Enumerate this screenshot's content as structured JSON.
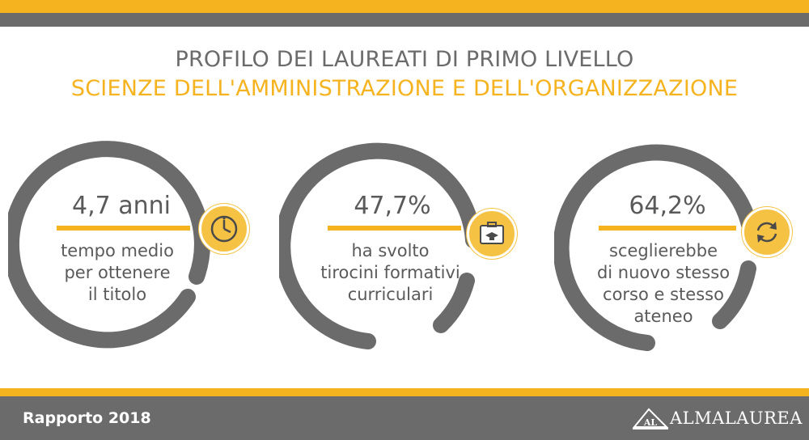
{
  "header": {
    "title_line1": "PROFILO DEI LAUREATI DI PRIMO LIVELLO",
    "title_line2": "SCIENZE DELL'AMMINISTRAZIONE E DELL'ORGANIZZAZIONE"
  },
  "stats": [
    {
      "value": "4,7 anni",
      "desc_lines": [
        "tempo medio",
        "per ottenere",
        "il titolo"
      ],
      "icon": "clock-icon"
    },
    {
      "value": "47,7%",
      "desc_lines": [
        "ha svolto",
        "tirocini formativi",
        "curriculari"
      ],
      "icon": "briefcase-graduation-icon"
    },
    {
      "value": "64,2%",
      "desc_lines": [
        "sceglierebbe",
        "di nuovo stesso",
        "corso e stesso",
        "ateneo"
      ],
      "icon": "refresh-cycle-icon"
    }
  ],
  "footer": {
    "report_label": "Rapporto 2018",
    "logo_text": "ALMALAUREA",
    "logo_mark": "AL"
  },
  "colors": {
    "accent": "#f5b320",
    "gray": "#6b6b6b",
    "text": "#5a5a5a"
  }
}
